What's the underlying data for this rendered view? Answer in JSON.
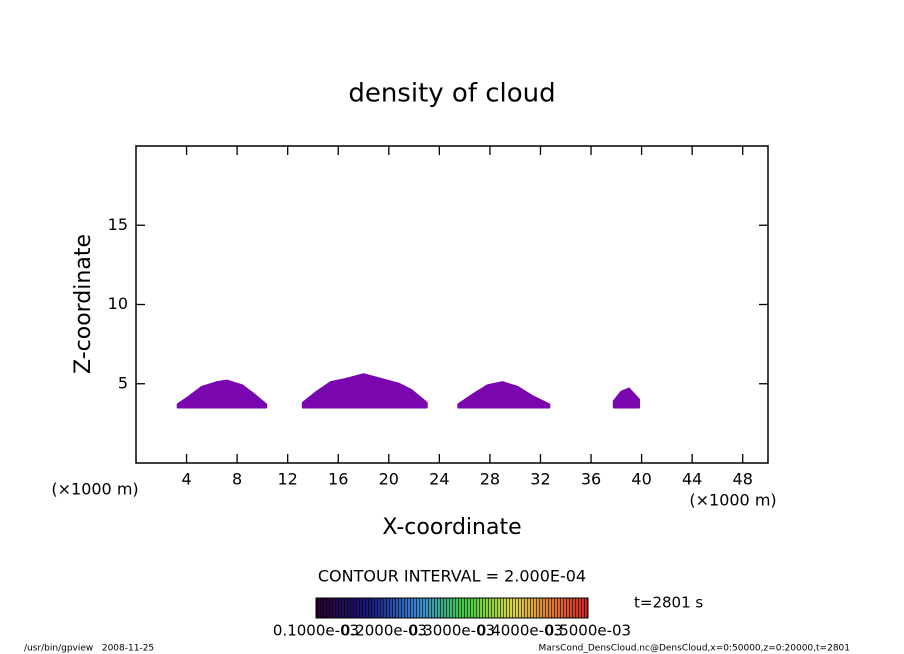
{
  "chart_data": {
    "type": "contour",
    "title": "density of cloud",
    "xlabel": "X-coordinate",
    "ylabel": "Z-coordinate",
    "x_unit": "(×1000 m)",
    "y_unit": "(×1000 m)",
    "xlim": [
      0,
      50
    ],
    "ylim": [
      0,
      20
    ],
    "xticks": [
      4,
      8,
      12,
      16,
      20,
      24,
      28,
      32,
      36,
      40,
      44,
      48
    ],
    "yticks": [
      5,
      10,
      15
    ],
    "color": "#7a06b0",
    "regions": [
      {
        "x": [
          3.3,
          4.2,
          5.2,
          6.4,
          7.2,
          8.4,
          9.4,
          10.3,
          10.3,
          3.3
        ],
        "values": [
          3.7,
          4.2,
          4.8,
          5.1,
          5.2,
          4.9,
          4.3,
          3.7,
          3.5,
          3.5
        ]
      },
      {
        "x": [
          13.2,
          14.3,
          15.4,
          16.6,
          18.0,
          19.4,
          20.8,
          21.8,
          23.0,
          23.0,
          13.2
        ],
        "values": [
          3.8,
          4.5,
          5.1,
          5.3,
          5.6,
          5.3,
          5.0,
          4.6,
          3.8,
          3.5,
          3.5
        ]
      },
      {
        "x": [
          25.5,
          26.6,
          27.8,
          29.0,
          30.2,
          31.4,
          32.7,
          32.7,
          25.5
        ],
        "values": [
          3.7,
          4.3,
          4.9,
          5.1,
          4.8,
          4.2,
          3.7,
          3.5,
          3.5
        ]
      },
      {
        "x": [
          37.8,
          38.4,
          39.0,
          39.8,
          39.8,
          37.8
        ],
        "values": [
          3.9,
          4.5,
          4.7,
          4.0,
          3.5,
          3.5
        ]
      }
    ],
    "contour_interval": "CONTOUR INTERVAL = 2.000E-04",
    "time_label": "t=2801 s",
    "colorbar_labels": [
      "0.1000e-03",
      "0.2000e-03",
      "0.3000e-03",
      "0.4000e-03",
      "0.5000e-03"
    ],
    "footer_left": "/usr/bin/gpview   2008-11-25",
    "footer_right": "MarsCond_DensCloud.nc@DensCloud,x=0:50000,z=0:20000,t=2801"
  }
}
